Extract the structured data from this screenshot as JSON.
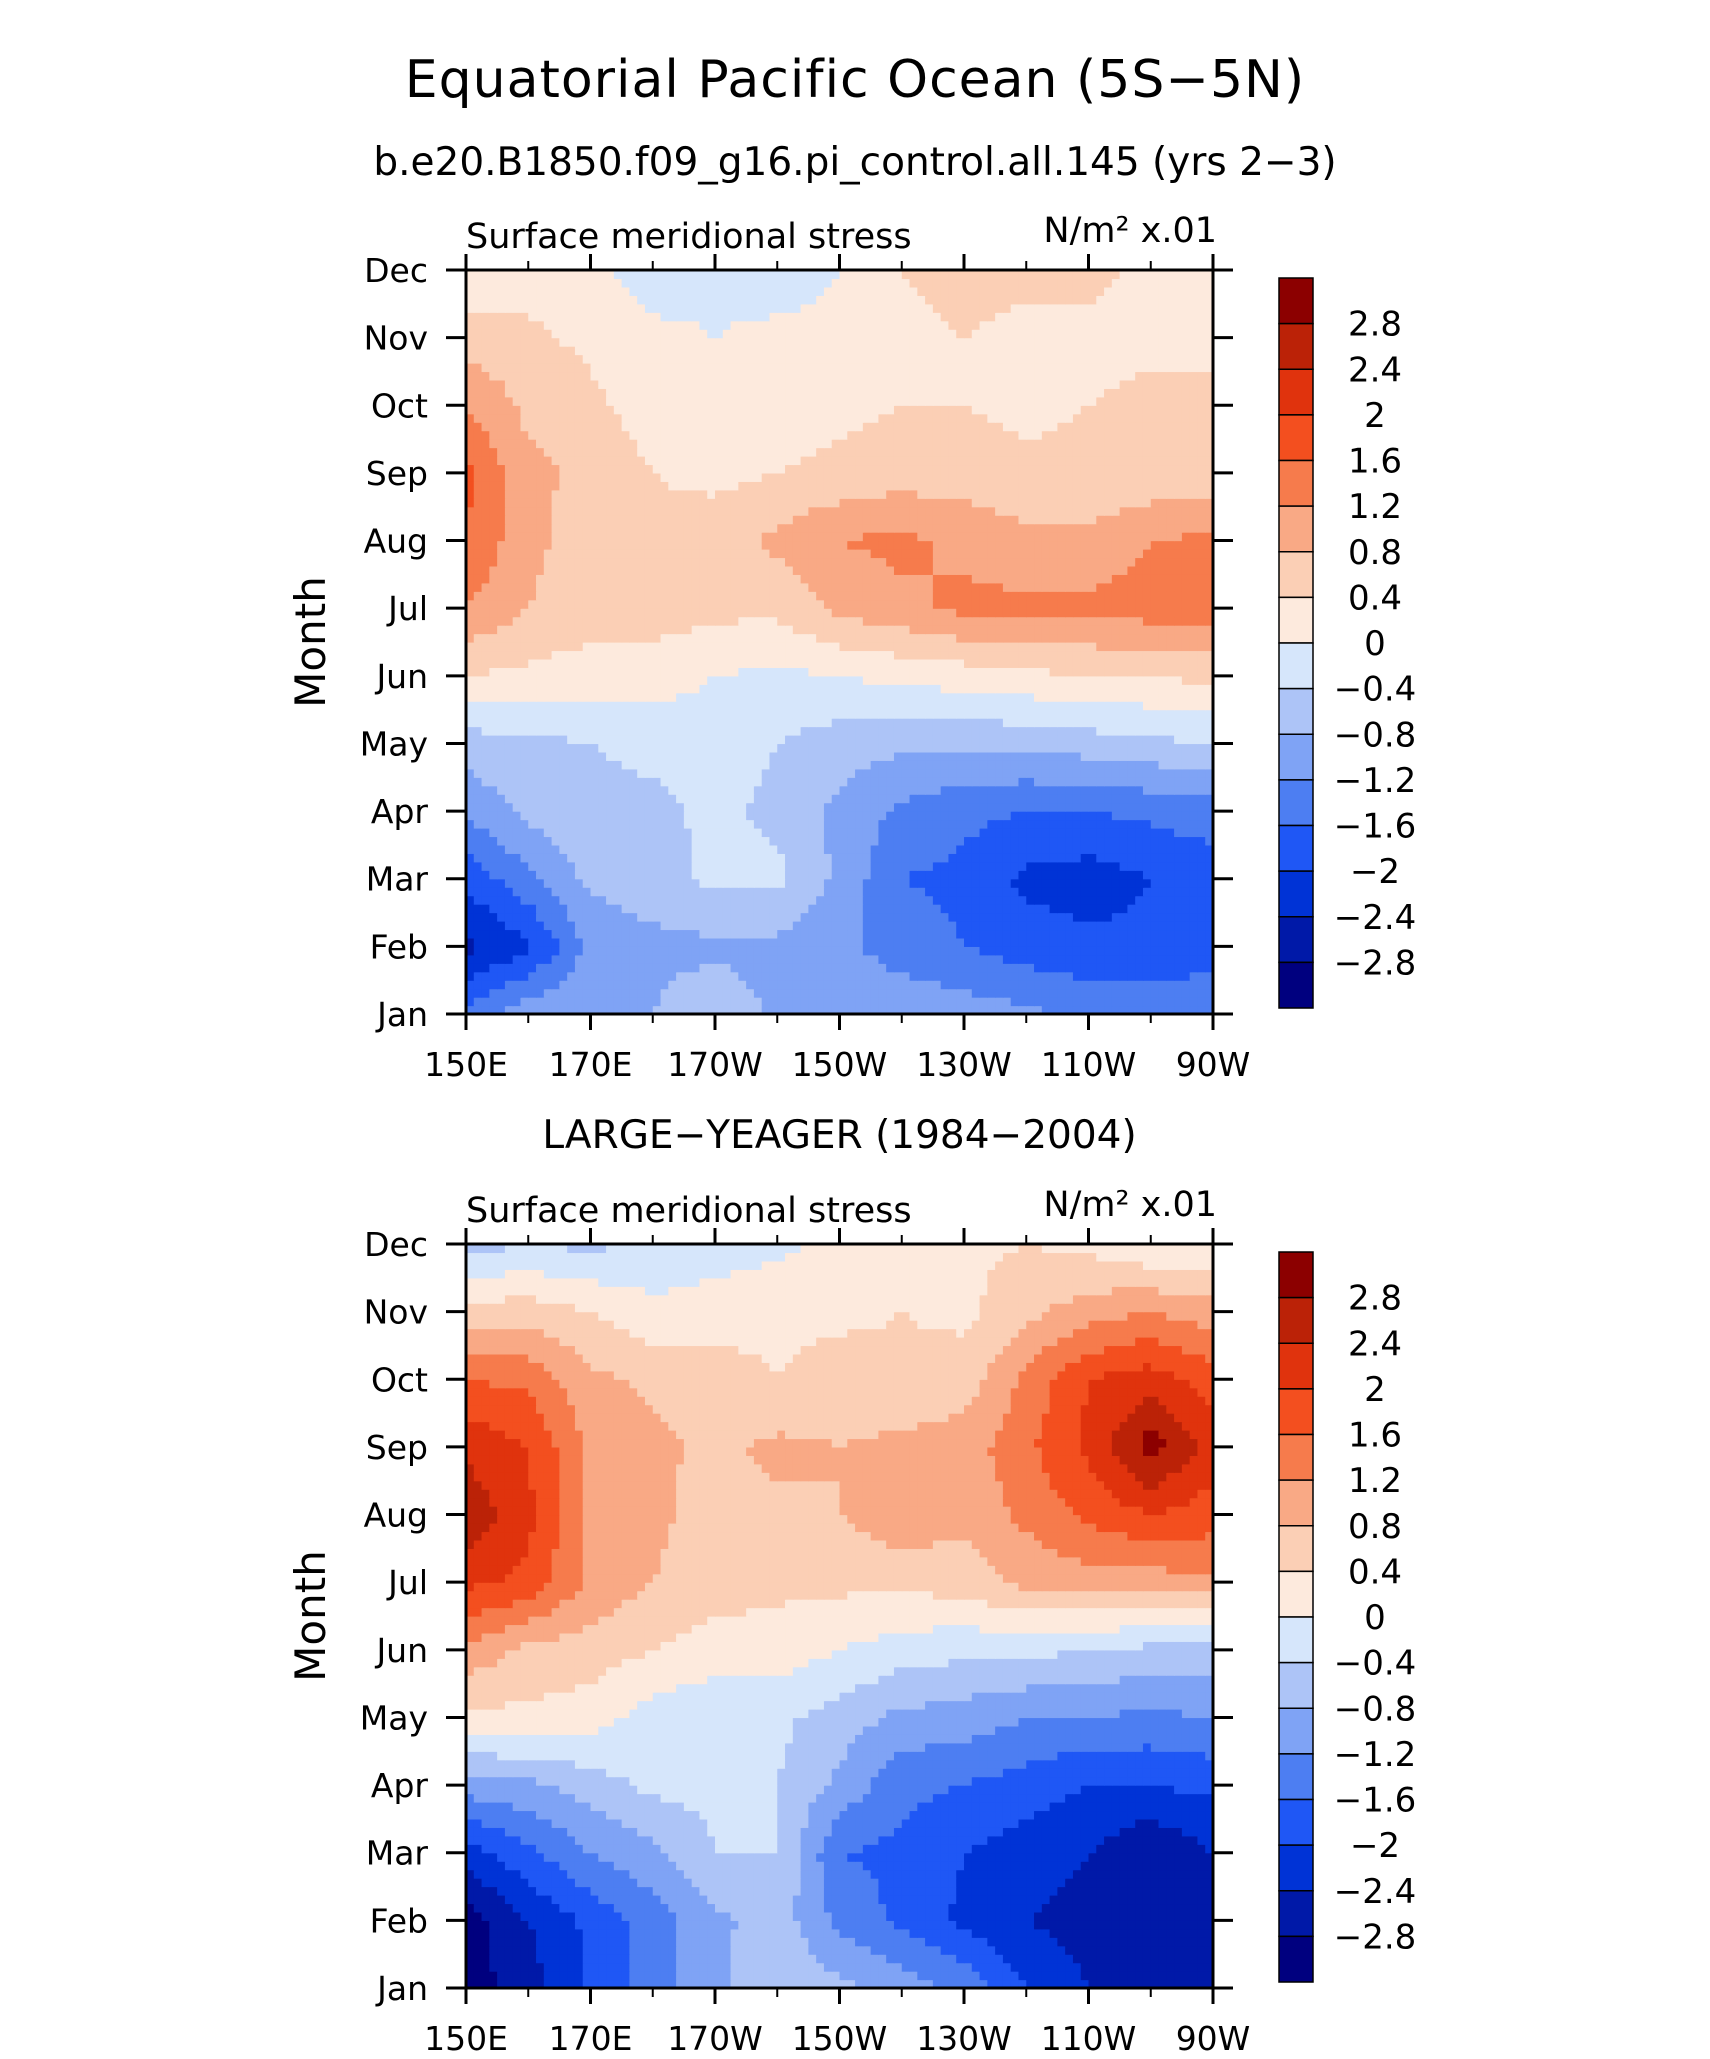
{
  "figure": {
    "title": "Equatorial Pacific Ocean (5S−5N)",
    "subtitle": "b.e20.B1850.f09_g16.pi_control.all.145 (yrs 2−3)"
  },
  "chart_data": [
    {
      "type": "heatmap",
      "title": "",
      "left_string": "Surface meridional stress",
      "right_string": "N/m² x.01",
      "xlabel": "",
      "ylabel": "Month",
      "xlim": [
        150,
        270
      ],
      "xticks": [
        150,
        170,
        190,
        210,
        230,
        250,
        270
      ],
      "xtick_labels": [
        "150E",
        "170E",
        "170W",
        "150W",
        "130W",
        "110W",
        "90W"
      ],
      "ylim": [
        1,
        12
      ],
      "yticks": [
        1,
        2,
        3,
        4,
        5,
        6,
        7,
        8,
        9,
        10,
        11,
        12
      ],
      "ytick_labels": [
        "Jan",
        "Feb",
        "Mar",
        "Apr",
        "May",
        "Jun",
        "Jul",
        "Aug",
        "Sep",
        "Oct",
        "Nov",
        "Dec"
      ],
      "x": [
        150,
        160,
        170,
        180,
        190,
        200,
        210,
        220,
        230,
        240,
        250,
        260,
        270
      ],
      "y": [
        1,
        2,
        3,
        4,
        5,
        6,
        7,
        8,
        9,
        10,
        11,
        12
      ],
      "z": [
        [
          -1.5,
          -0.9,
          -0.8,
          -0.8,
          -0.5,
          -0.9,
          -0.9,
          -0.9,
          -1.0,
          -1.1,
          -1.3,
          -1.3,
          -1.3
        ],
        [
          -2.5,
          -2.1,
          -1.1,
          -0.9,
          -0.9,
          -0.9,
          -1.1,
          -1.4,
          -1.6,
          -1.8,
          -1.9,
          -1.9,
          -1.8
        ],
        [
          -1.9,
          -1.3,
          -0.7,
          -0.6,
          -0.3,
          -0.3,
          -0.9,
          -1.6,
          -1.7,
          -2.1,
          -2.2,
          -2.0,
          -1.8
        ],
        [
          -1.1,
          -0.7,
          -0.5,
          -0.5,
          -0.3,
          -0.5,
          -0.9,
          -1.3,
          -1.5,
          -1.6,
          -1.6,
          -1.5,
          -1.4
        ],
        [
          -0.6,
          -0.5,
          -0.4,
          -0.3,
          -0.2,
          -0.4,
          -0.6,
          -0.7,
          -0.7,
          -0.7,
          -0.6,
          -0.5,
          -0.4
        ],
        [
          0.4,
          0.3,
          0.2,
          0.2,
          0.0,
          -0.1,
          0.0,
          0.1,
          0.2,
          0.3,
          0.4,
          0.4,
          0.5
        ],
        [
          1.2,
          0.8,
          0.6,
          0.6,
          0.5,
          0.5,
          0.9,
          1.1,
          1.3,
          1.3,
          1.3,
          1.4,
          1.4
        ],
        [
          1.6,
          0.9,
          0.6,
          0.5,
          0.6,
          0.9,
          1.2,
          1.3,
          1.1,
          0.9,
          0.9,
          1.2,
          1.3
        ],
        [
          1.7,
          0.9,
          0.7,
          0.4,
          0.3,
          0.4,
          0.5,
          0.6,
          0.6,
          0.5,
          0.5,
          0.5,
          0.5
        ],
        [
          1.2,
          0.7,
          0.5,
          0.2,
          0.1,
          0.2,
          0.3,
          0.4,
          0.4,
          0.3,
          0.4,
          0.5,
          0.5
        ],
        [
          0.6,
          0.5,
          0.3,
          0.1,
          0.0,
          0.1,
          0.1,
          0.3,
          0.4,
          0.3,
          0.3,
          0.3,
          0.3
        ],
        [
          0.0,
          0.2,
          0.1,
          -0.2,
          -0.1,
          -0.2,
          0.0,
          0.4,
          0.5,
          0.5,
          0.5,
          0.3,
          0.3
        ]
      ],
      "levels": [
        -2.8,
        -2.4,
        -2.0,
        -1.6,
        -1.2,
        -0.8,
        -0.4,
        0,
        0.4,
        0.8,
        1.2,
        1.6,
        2.0,
        2.4,
        2.8
      ],
      "level_labels": [
        "2.8",
        "2.4",
        "2",
        "1.6",
        "1.2",
        "0.8",
        "0.4",
        "0",
        "−0.4",
        "−0.8",
        "−1.2",
        "−1.6",
        "−2",
        "−2.4",
        "−2.8"
      ],
      "colors": [
        "#00007f",
        "#0019a8",
        "#0033d6",
        "#1f57f5",
        "#4d7ef2",
        "#7fa3f5",
        "#adc4f7",
        "#d6e6fb",
        "#fdeadd",
        "#fbcfb5",
        "#f9a985",
        "#f67b4c",
        "#f34f1f",
        "#e0330d",
        "#bb2207",
        "#8c0000"
      ]
    },
    {
      "type": "heatmap",
      "title": "LARGE−YEAGER (1984−2004)",
      "left_string": "Surface meridional stress",
      "right_string": "N/m² x.01",
      "xlabel": "",
      "ylabel": "Month",
      "xlim": [
        150,
        270
      ],
      "xticks": [
        150,
        170,
        190,
        210,
        230,
        250,
        270
      ],
      "xtick_labels": [
        "150E",
        "170E",
        "170W",
        "150W",
        "130W",
        "110W",
        "90W"
      ],
      "ylim": [
        1,
        12
      ],
      "yticks": [
        1,
        2,
        3,
        4,
        5,
        6,
        7,
        8,
        9,
        10,
        11,
        12
      ],
      "ytick_labels": [
        "Jan",
        "Feb",
        "Mar",
        "Apr",
        "May",
        "Jun",
        "Jul",
        "Aug",
        "Sep",
        "Oct",
        "Nov",
        "Dec"
      ],
      "x": [
        150,
        160,
        170,
        180,
        190,
        200,
        210,
        220,
        230,
        240,
        250,
        260,
        270
      ],
      "y": [
        1,
        2,
        3,
        4,
        5,
        6,
        7,
        8,
        9,
        10,
        11,
        12
      ],
      "z": [
        [
          -3.0,
          -2.6,
          -1.9,
          -1.4,
          -0.9,
          -0.4,
          -0.7,
          -1.0,
          -1.3,
          -2.0,
          -2.4,
          -2.6,
          -2.5
        ],
        [
          -3.0,
          -2.4,
          -1.9,
          -1.4,
          -0.9,
          -0.6,
          -1.3,
          -1.7,
          -2.1,
          -2.4,
          -2.6,
          -2.8,
          -2.6
        ],
        [
          -2.2,
          -1.7,
          -1.2,
          -0.9,
          -0.4,
          -0.4,
          -1.6,
          -1.7,
          -2.0,
          -2.2,
          -2.4,
          -2.8,
          -2.4
        ],
        [
          -1.0,
          -0.9,
          -0.6,
          -0.3,
          -0.3,
          -0.4,
          -0.9,
          -1.5,
          -1.6,
          -1.8,
          -2.0,
          -2.0,
          -1.9
        ],
        [
          0.3,
          0.3,
          0.2,
          -0.2,
          -0.3,
          -0.3,
          -0.6,
          -0.9,
          -1.0,
          -1.2,
          -1.2,
          -1.3,
          -1.2
        ],
        [
          1.1,
          0.7,
          0.6,
          0.4,
          0.2,
          0.2,
          0.0,
          -0.2,
          -0.3,
          -0.3,
          -0.4,
          -0.5,
          -0.5
        ],
        [
          2.1,
          1.9,
          1.1,
          0.8,
          0.6,
          0.5,
          0.5,
          0.5,
          0.6,
          0.9,
          1.0,
          1.0,
          1.1
        ],
        [
          2.7,
          2.1,
          1.1,
          0.9,
          0.6,
          0.7,
          0.8,
          1.1,
          0.9,
          1.3,
          1.7,
          2.0,
          1.8
        ],
        [
          2.3,
          2.0,
          1.1,
          0.9,
          0.7,
          0.9,
          0.8,
          0.9,
          1.0,
          1.5,
          2.1,
          3.0,
          2.2
        ],
        [
          1.6,
          1.5,
          0.9,
          0.7,
          0.6,
          0.4,
          0.6,
          0.5,
          0.6,
          1.3,
          2.0,
          2.2,
          1.8
        ],
        [
          0.6,
          0.6,
          0.4,
          0.1,
          0.2,
          0.3,
          0.3,
          0.4,
          0.3,
          0.7,
          1.0,
          1.2,
          1.0
        ],
        [
          -0.6,
          -0.4,
          -0.5,
          -0.3,
          -0.2,
          -0.1,
          0.1,
          0.2,
          0.3,
          0.4,
          0.3,
          0.0,
          0.0
        ]
      ],
      "levels": [
        -2.8,
        -2.4,
        -2.0,
        -1.6,
        -1.2,
        -0.8,
        -0.4,
        0,
        0.4,
        0.8,
        1.2,
        1.6,
        2.0,
        2.4,
        2.8
      ],
      "level_labels": [
        "2.8",
        "2.4",
        "2",
        "1.6",
        "1.2",
        "0.8",
        "0.4",
        "0",
        "−0.4",
        "−0.8",
        "−1.2",
        "−1.6",
        "−2",
        "−2.4",
        "−2.8"
      ],
      "colors": [
        "#00007f",
        "#0019a8",
        "#0033d6",
        "#1f57f5",
        "#4d7ef2",
        "#7fa3f5",
        "#adc4f7",
        "#d6e6fb",
        "#fdeadd",
        "#fbcfb5",
        "#f9a985",
        "#f67b4c",
        "#f34f1f",
        "#e0330d",
        "#bb2207",
        "#8c0000"
      ]
    }
  ]
}
